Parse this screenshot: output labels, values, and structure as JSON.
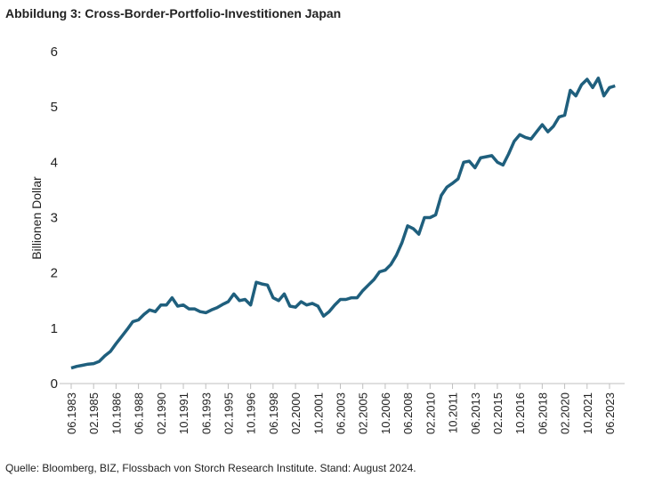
{
  "chart_data": {
    "type": "line",
    "title": "Abbildung 3: Cross-Border-Portfolio-Investitionen Japan",
    "y_label": "Billionen Dollar",
    "footnote": "Quelle: Bloomberg, BIZ, Flossbach von Storch Research Institute. Stand: August 2024.",
    "categories": [
      "06.1983",
      null,
      null,
      null,
      "02.1985",
      null,
      null,
      null,
      "10.1986",
      null,
      null,
      null,
      "06.1988",
      null,
      null,
      null,
      "02.1990",
      null,
      null,
      null,
      "10.1991",
      null,
      null,
      null,
      "06.1993",
      null,
      null,
      null,
      "02.1995",
      null,
      null,
      null,
      "10.1996",
      null,
      null,
      null,
      "06.1998",
      null,
      null,
      null,
      "02.2000",
      null,
      null,
      null,
      "10.2001",
      null,
      null,
      null,
      "06.2003",
      null,
      null,
      null,
      "02.2005",
      null,
      null,
      null,
      "10.2006",
      null,
      null,
      null,
      "06.2008",
      null,
      null,
      null,
      "02.2010",
      null,
      null,
      null,
      "10.2011",
      null,
      null,
      null,
      "06.2013",
      null,
      null,
      null,
      "02.2015",
      null,
      null,
      null,
      "10.2016",
      null,
      null,
      null,
      "06.2018",
      null,
      null,
      null,
      "02.2020",
      null,
      null,
      null,
      "10.2021",
      null,
      null,
      null,
      "06.2023",
      null
    ],
    "series": [
      {
        "color": "#1f5f7d",
        "values": [
          0.28,
          0.31,
          0.33,
          0.35,
          0.36,
          0.4,
          0.5,
          0.58,
          0.72,
          0.85,
          0.98,
          1.12,
          1.15,
          1.25,
          1.33,
          1.3,
          1.42,
          1.42,
          1.55,
          1.4,
          1.42,
          1.35,
          1.35,
          1.3,
          1.28,
          1.33,
          1.37,
          1.43,
          1.48,
          1.62,
          1.5,
          1.52,
          1.42,
          1.83,
          1.8,
          1.78,
          1.55,
          1.5,
          1.62,
          1.4,
          1.38,
          1.48,
          1.42,
          1.45,
          1.4,
          1.22,
          1.3,
          1.42,
          1.52,
          1.52,
          1.55,
          1.55,
          1.68,
          1.78,
          1.88,
          2.02,
          2.05,
          2.15,
          2.32,
          2.55,
          2.85,
          2.8,
          2.7,
          3.0,
          3.0,
          3.05,
          3.4,
          3.55,
          3.62,
          3.7,
          4.0,
          4.02,
          3.9,
          4.08,
          4.1,
          4.12,
          4.0,
          3.95,
          4.15,
          4.38,
          4.5,
          4.45,
          4.42,
          4.55,
          4.68,
          4.55,
          4.65,
          4.82,
          4.85,
          5.3,
          5.2,
          5.4,
          5.5,
          5.35,
          5.52,
          5.2,
          5.35,
          5.38
        ]
      }
    ],
    "ylim": [
      0,
      6
    ],
    "yticks": [
      0,
      1,
      2,
      3,
      4,
      5,
      6
    ]
  }
}
